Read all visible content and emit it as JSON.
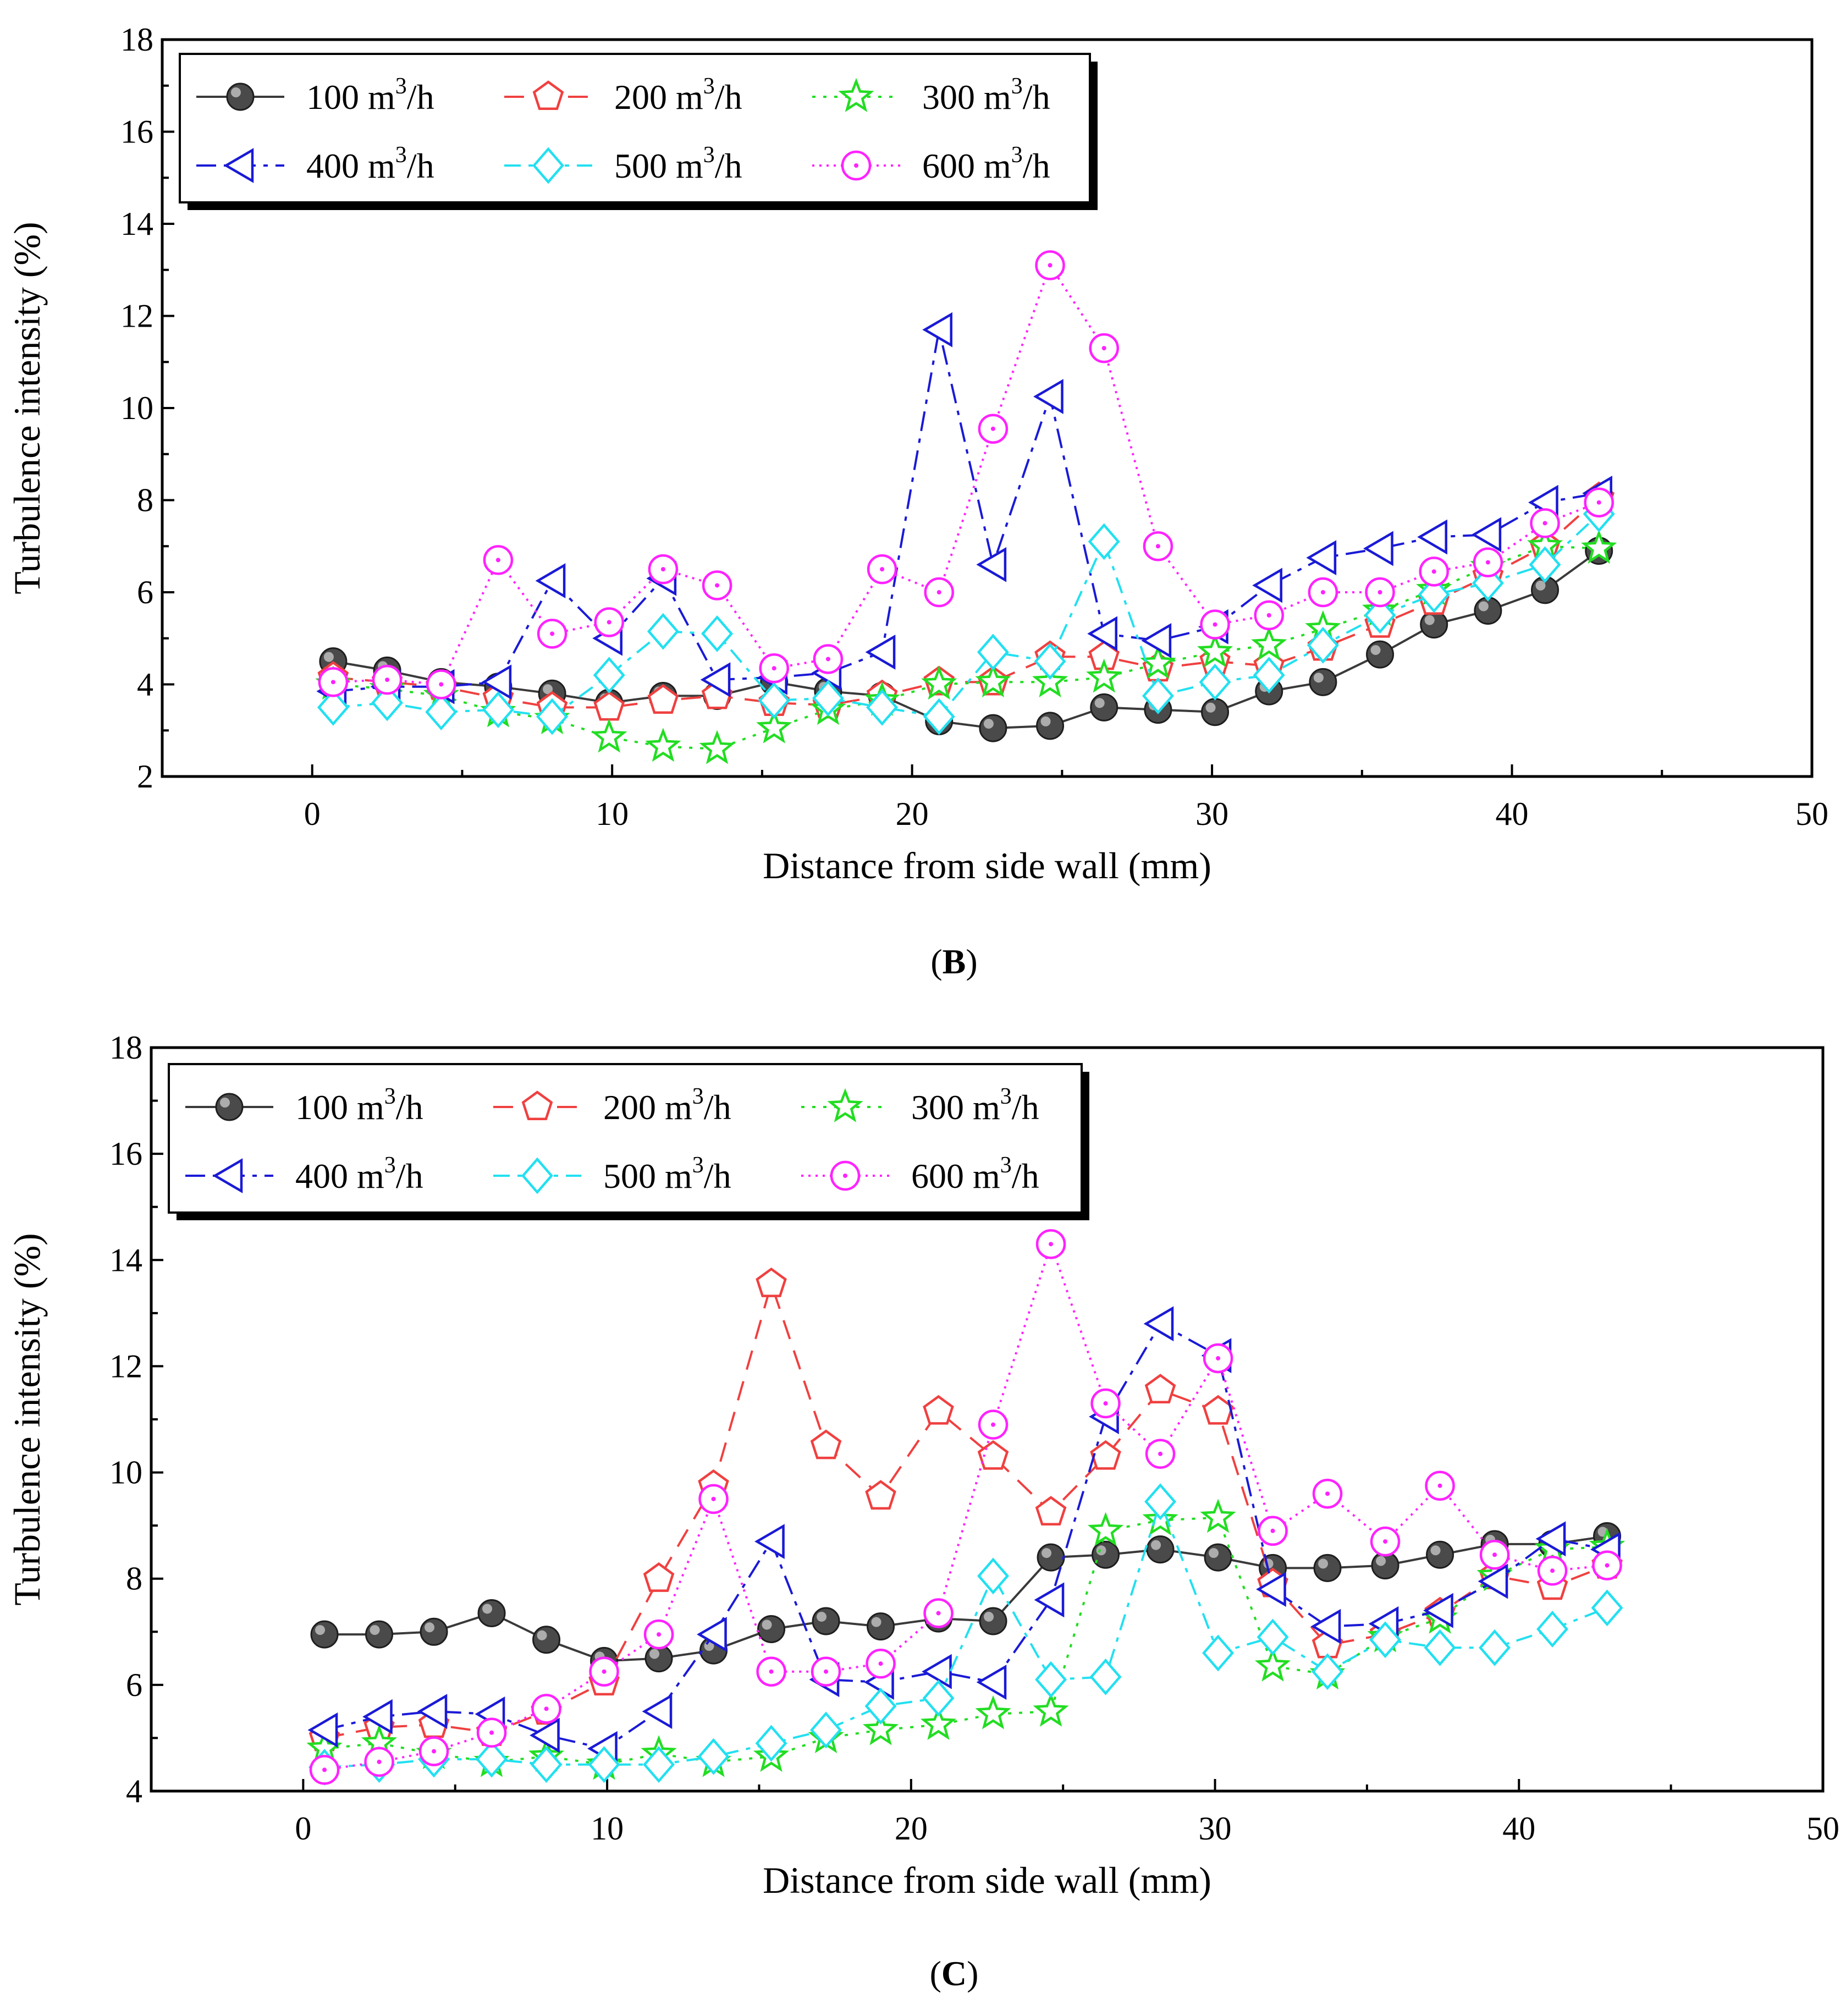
{
  "figure": {
    "series_styles": [
      {
        "name": "100 m³/h",
        "label_main": "100 m",
        "label_sup": "3",
        "label_tail": "/h",
        "color": "#3a3a3a",
        "marker": "ball",
        "dash": ""
      },
      {
        "name": "200 m³/h",
        "label_main": "200 m",
        "label_sup": "3",
        "label_tail": "/h",
        "color": "#f04040",
        "marker": "pentagon",
        "dash": "36 22"
      },
      {
        "name": "300 m³/h",
        "label_main": "300 m",
        "label_sup": "3",
        "label_tail": "/h",
        "color": "#22dd22",
        "marker": "star",
        "dash": "6 14"
      },
      {
        "name": "400 m³/h",
        "label_main": "400 m",
        "label_sup": "3",
        "label_tail": "/h",
        "color": "#1a1ad6",
        "marker": "triangle-left",
        "dash": "36 14 8 14"
      },
      {
        "name": "500 m³/h",
        "label_main": "500 m",
        "label_sup": "3",
        "label_tail": "/h",
        "color": "#22e0f0",
        "marker": "diamond",
        "dash": "30 14 8 14"
      },
      {
        "name": "600 m³/h",
        "label_main": "600 m",
        "label_sup": "3",
        "label_tail": "/h",
        "color": "#ff22ff",
        "marker": "circle-dot",
        "dash": "4 9"
      }
    ]
  },
  "chart_data": [
    {
      "type": "line",
      "panel_label": "(B)",
      "panel_letter": "B",
      "xlabel": "Distance from side wall (mm)",
      "ylabel": "Turbulence intensity (%)",
      "xlim": [
        -5,
        50
      ],
      "ylim": [
        2,
        18
      ],
      "xticks": [
        0,
        10,
        20,
        30,
        40,
        50
      ],
      "yticks": [
        2,
        4,
        6,
        8,
        10,
        12,
        14,
        16,
        18
      ],
      "x": [
        0.7,
        2.5,
        4.3,
        6.2,
        8.0,
        9.9,
        11.7,
        13.5,
        15.4,
        17.2,
        19.0,
        20.9,
        22.7,
        24.6,
        26.4,
        28.2,
        30.1,
        31.9,
        33.7,
        35.6,
        37.4,
        39.2,
        41.1,
        42.9
      ],
      "series": [
        {
          "name": "100 m³/h",
          "values": [
            4.5,
            4.3,
            4.05,
            3.95,
            3.8,
            3.6,
            3.75,
            3.75,
            4.05,
            3.85,
            3.75,
            3.2,
            3.05,
            3.1,
            3.5,
            3.45,
            3.4,
            3.85,
            4.05,
            4.65,
            5.3,
            5.6,
            6.05,
            6.9
          ]
        },
        {
          "name": "200 m³/h",
          "values": [
            4.15,
            4.05,
            3.95,
            3.7,
            3.5,
            3.5,
            3.65,
            3.75,
            3.6,
            3.55,
            3.75,
            4.05,
            4.05,
            4.6,
            4.6,
            4.35,
            4.5,
            4.4,
            4.8,
            5.3,
            5.8,
            6.35,
            7.0,
            8.05
          ]
        },
        {
          "name": "300 m³/h",
          "values": [
            4.0,
            3.9,
            3.75,
            3.4,
            3.25,
            2.85,
            2.65,
            2.6,
            3.05,
            3.45,
            3.65,
            4.0,
            4.05,
            4.05,
            4.15,
            4.45,
            4.7,
            4.85,
            5.2,
            5.6,
            6.05,
            6.55,
            7.0,
            6.95
          ]
        },
        {
          "name": "400 m³/h",
          "values": [
            3.85,
            3.95,
            3.95,
            4.05,
            6.25,
            5.0,
            6.3,
            4.1,
            4.15,
            4.25,
            4.7,
            11.7,
            6.6,
            10.25,
            5.1,
            4.95,
            5.25,
            6.15,
            6.75,
            6.95,
            7.2,
            7.25,
            7.95,
            8.15
          ]
        },
        {
          "name": "500 m³/h",
          "values": [
            3.5,
            3.6,
            3.4,
            3.45,
            3.3,
            4.2,
            5.15,
            5.1,
            3.65,
            3.7,
            3.5,
            3.3,
            4.7,
            4.5,
            7.1,
            3.75,
            4.05,
            4.2,
            4.85,
            5.5,
            5.95,
            6.2,
            6.6,
            7.7
          ]
        },
        {
          "name": "600 m³/h",
          "values": [
            4.05,
            4.1,
            4.0,
            6.7,
            5.1,
            5.35,
            6.5,
            6.15,
            4.35,
            4.55,
            6.5,
            6.0,
            9.55,
            13.1,
            11.3,
            7.0,
            5.3,
            5.5,
            6.0,
            6.0,
            6.45,
            6.65,
            7.5,
            7.95
          ]
        }
      ]
    },
    {
      "type": "line",
      "panel_label": "(C)",
      "panel_letter": "C",
      "xlabel": "Distance from side wall (mm)",
      "ylabel": "Turbulence intensity (%)",
      "xlim": [
        -5,
        50
      ],
      "ylim": [
        4,
        18
      ],
      "xticks": [
        0,
        10,
        20,
        30,
        40,
        50
      ],
      "yticks": [
        4,
        6,
        8,
        10,
        12,
        14,
        16,
        18
      ],
      "x": [
        0.7,
        2.5,
        4.3,
        6.2,
        8.0,
        9.9,
        11.7,
        13.5,
        15.4,
        17.2,
        19.0,
        20.9,
        22.7,
        24.6,
        26.4,
        28.2,
        30.1,
        31.9,
        33.7,
        35.6,
        37.4,
        39.2,
        41.1,
        42.9
      ],
      "series": [
        {
          "name": "100 m³/h",
          "values": [
            6.95,
            6.95,
            7.0,
            7.35,
            6.85,
            6.45,
            6.5,
            6.65,
            7.05,
            7.2,
            7.1,
            7.25,
            7.2,
            8.4,
            8.45,
            8.55,
            8.4,
            8.2,
            8.2,
            8.25,
            8.45,
            8.65,
            8.65,
            8.8
          ]
        },
        {
          "name": "200 m³/h",
          "values": [
            5.0,
            5.2,
            5.25,
            5.1,
            5.5,
            6.05,
            8.0,
            9.75,
            13.55,
            10.5,
            9.55,
            11.15,
            10.3,
            9.25,
            10.3,
            11.55,
            11.15,
            7.9,
            6.75,
            6.95,
            7.35,
            8.05,
            7.85,
            8.25
          ]
        },
        {
          "name": "300 m³/h",
          "values": [
            4.8,
            4.9,
            4.7,
            4.55,
            4.65,
            4.5,
            4.7,
            4.55,
            4.65,
            5.0,
            5.15,
            5.25,
            5.45,
            5.5,
            8.9,
            9.1,
            9.15,
            6.35,
            6.2,
            6.9,
            7.25,
            8.05,
            8.55,
            8.6
          ]
        },
        {
          "name": "400 m³/h",
          "values": [
            5.15,
            5.4,
            5.5,
            5.45,
            5.05,
            4.8,
            5.5,
            6.95,
            8.7,
            6.1,
            6.05,
            6.25,
            6.05,
            7.6,
            11.05,
            12.8,
            12.2,
            7.8,
            7.1,
            7.15,
            7.4,
            7.95,
            8.75,
            8.55
          ]
        },
        {
          "name": "500 m³/h",
          "values": [
            4.45,
            4.5,
            4.6,
            4.6,
            4.5,
            4.5,
            4.5,
            4.65,
            4.9,
            5.15,
            5.6,
            5.75,
            8.05,
            6.1,
            6.15,
            9.45,
            6.6,
            6.9,
            6.25,
            6.85,
            6.7,
            6.7,
            7.05,
            7.45
          ]
        },
        {
          "name": "600 m³/h",
          "values": [
            4.4,
            4.55,
            4.75,
            5.1,
            5.55,
            6.25,
            6.95,
            9.5,
            6.25,
            6.25,
            6.4,
            7.35,
            10.9,
            14.3,
            11.3,
            10.35,
            12.15,
            8.9,
            9.6,
            8.7,
            9.75,
            8.45,
            8.15,
            8.25
          ]
        }
      ]
    }
  ]
}
